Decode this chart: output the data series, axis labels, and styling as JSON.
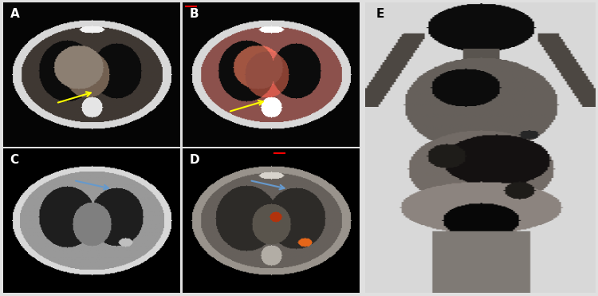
{
  "figure_width": 7.5,
  "figure_height": 3.71,
  "dpi": 100,
  "bg_color": "#e0e0e0",
  "panels": [
    "A",
    "B",
    "C",
    "D",
    "E"
  ],
  "label_color_ABCD": "white",
  "label_color_E": "black",
  "label_fontsize": 11,
  "label_fontweight": "bold",
  "arrow_color_yellow": "#ffff00",
  "arrow_color_blue": "#4488cc",
  "red_dash_color": "#cc0000",
  "panel_positions": {
    "A": [
      0.005,
      0.505,
      0.295,
      0.488
    ],
    "B": [
      0.305,
      0.505,
      0.295,
      0.488
    ],
    "C": [
      0.005,
      0.01,
      0.295,
      0.488
    ],
    "D": [
      0.305,
      0.01,
      0.295,
      0.488
    ],
    "E": [
      0.61,
      0.01,
      0.385,
      0.983
    ]
  }
}
